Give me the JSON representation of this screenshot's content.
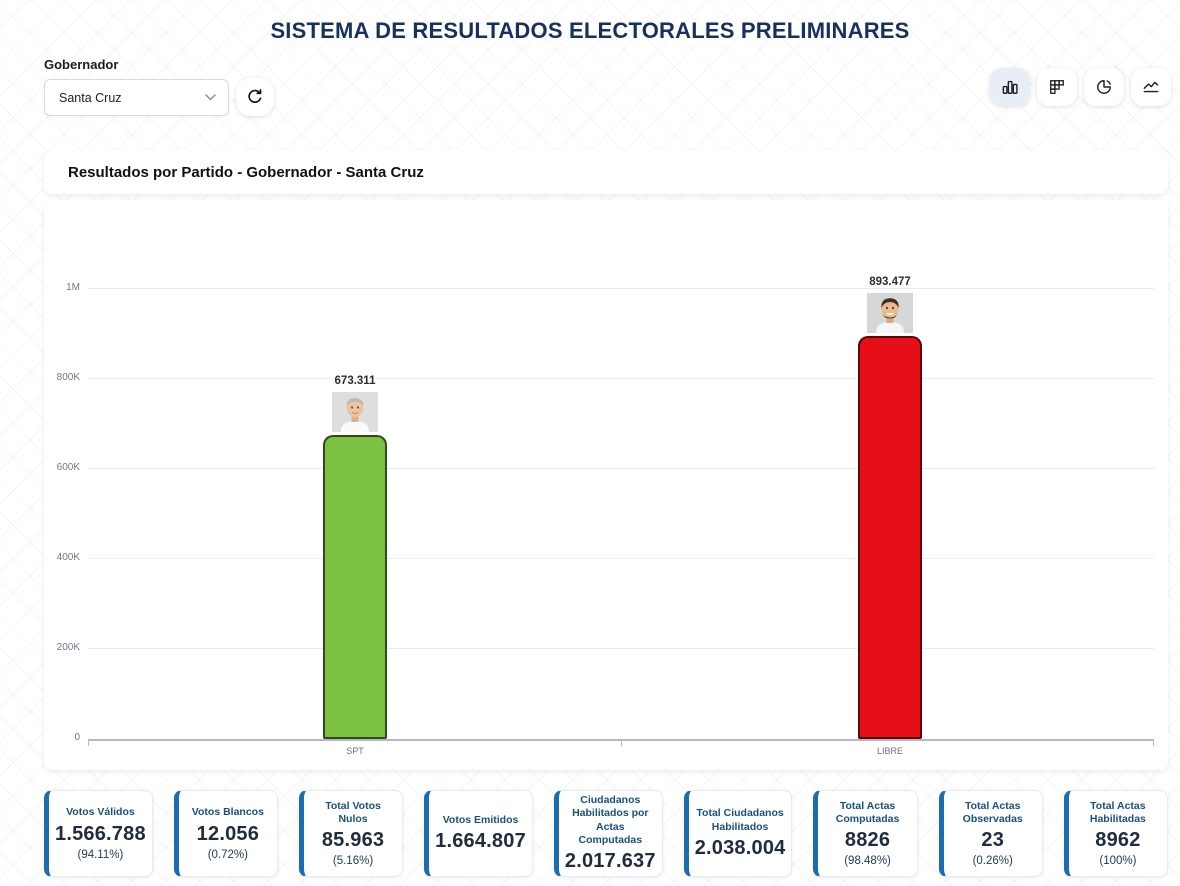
{
  "title": "SISTEMA DE RESULTADOS ELECTORALES PRELIMINARES",
  "filter": {
    "label": "Gobernador",
    "value": "Santa Cruz"
  },
  "toolbar": {
    "icons": [
      {
        "name": "column-chart-view",
        "active": true
      },
      {
        "name": "matrix-table-view",
        "active": false
      },
      {
        "name": "donut-chart-view",
        "active": false
      },
      {
        "name": "line-chart-view",
        "active": false
      }
    ]
  },
  "chart_card": {
    "header": "Resultados por Partido - Gobernador - Santa Cruz"
  },
  "chart_data": {
    "type": "bar",
    "title": "Resultados por Partido - Gobernador - Santa Cruz",
    "categories": [
      "SPT",
      "LIBRE"
    ],
    "values": [
      673311,
      893477
    ],
    "value_labels": [
      "673.311",
      "893.477"
    ],
    "bar_colors": [
      "#7cc142",
      "#e60f17"
    ],
    "ylim": [
      0,
      1000000
    ],
    "ytick_labels": [
      "1M",
      "800K",
      "600K",
      "400K",
      "200K",
      "0"
    ],
    "grid": true,
    "legend": "none",
    "annotations": "candidate headshot photo above each bar"
  },
  "summary_cards": [
    {
      "label": "Votos Válidos",
      "value": "1.566.788",
      "percent": "(94.11%)"
    },
    {
      "label": "Votos Blancos",
      "value": "12.056",
      "percent": "(0.72%)"
    },
    {
      "label": "Total Votos Nulos",
      "value": "85.963",
      "percent": "(5.16%)"
    },
    {
      "label": "Votos Emitidos",
      "value": "1.664.807",
      "percent": ""
    },
    {
      "label": "Ciudadanos Habilitados por Actas Computadas",
      "value": "2.017.637",
      "percent": ""
    },
    {
      "label": "Total Ciudadanos Habilitados",
      "value": "2.038.004",
      "percent": ""
    },
    {
      "label": "Total Actas Computadas",
      "value": "8826",
      "percent": "(98.48%)"
    },
    {
      "label": "Total Actas Observadas",
      "value": "23",
      "percent": "(0.26%)"
    },
    {
      "label": "Total Actas Habilitadas",
      "value": "8962",
      "percent": "(100%)"
    }
  ],
  "colors": {
    "title_navy": "#17315e",
    "accent_blue": "#1c6cae",
    "bar_green": "#7cc142",
    "bar_red": "#e60f17"
  }
}
